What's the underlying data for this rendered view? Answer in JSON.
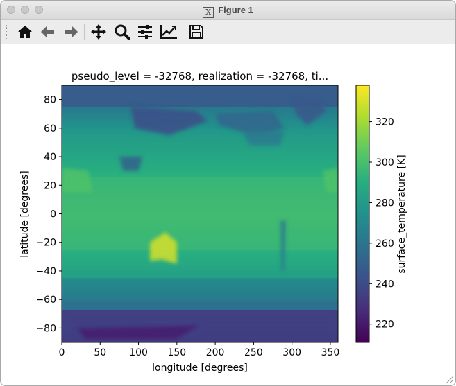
{
  "window": {
    "title": "Figure 1"
  },
  "toolbar": {
    "buttons": [
      {
        "name": "home",
        "icon": "home-icon"
      },
      {
        "name": "back",
        "icon": "arrow-left-icon"
      },
      {
        "name": "forward",
        "icon": "arrow-right-icon"
      },
      {
        "name": "pan",
        "icon": "move-icon"
      },
      {
        "name": "zoom",
        "icon": "magnifier-icon"
      },
      {
        "name": "configure-subplots",
        "icon": "sliders-icon"
      },
      {
        "name": "edit-axis",
        "icon": "line-chart-icon"
      },
      {
        "name": "save",
        "icon": "floppy-disk-icon"
      }
    ]
  },
  "chart_data": {
    "type": "heatmap",
    "title": "pseudo_level = -32768, realization = -32768, ti...",
    "xlabel": "longitude [degrees]",
    "ylabel": "latitude [degrees]",
    "xlim": [
      0,
      360
    ],
    "ylim": [
      -90,
      90
    ],
    "x_ticks": [
      "0",
      "50",
      "100",
      "150",
      "200",
      "250",
      "300",
      "350"
    ],
    "x_tick_values": [
      0,
      50,
      100,
      150,
      200,
      250,
      300,
      350
    ],
    "y_ticks": [
      "80",
      "60",
      "40",
      "20",
      "0",
      "−20",
      "−40",
      "−60",
      "−80"
    ],
    "y_tick_values": [
      80,
      60,
      40,
      20,
      0,
      -20,
      -40,
      -60,
      -80
    ],
    "colormap": "viridis",
    "colorbar": {
      "label": "surface_temperature [K]",
      "range": [
        211,
        338
      ],
      "ticks": [
        "320",
        "300",
        "280",
        "260",
        "240",
        "220"
      ],
      "tick_values": [
        320,
        300,
        280,
        260,
        240,
        220
      ]
    },
    "field_description_values": {
      "equator_K": 298,
      "subtropics_K": 292,
      "southern_ocean_K": 272,
      "antarctica_K": 235,
      "greenland_K": 245,
      "siberia_K": 240,
      "australia_interior_K": 330
    }
  }
}
